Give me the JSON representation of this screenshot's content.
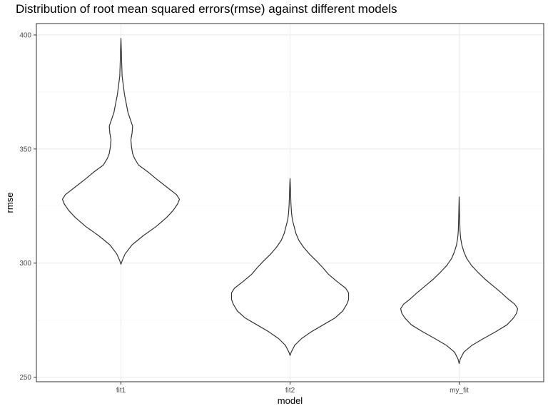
{
  "chart_data": {
    "type": "violin",
    "title": "Distribution of root mean squared errors(rmse) against different models",
    "xlabel": "model",
    "ylabel": "rmse",
    "ylim": [
      248,
      405
    ],
    "y_ticks": [
      250,
      300,
      350,
      400
    ],
    "categories": [
      "fit1",
      "fit2",
      "my_fit"
    ],
    "grid": true,
    "legend": "none",
    "colors": {
      "outline": "#333333",
      "panel_border": "#333333",
      "grid_major": "#ebebeb",
      "grid_minor": "#f5f5f5"
    },
    "violins": [
      {
        "category": "fit1",
        "min": 299.5,
        "max": 398.5,
        "density": [
          [
            299.5,
            0.0
          ],
          [
            301,
            0.02
          ],
          [
            304,
            0.07
          ],
          [
            308,
            0.19
          ],
          [
            312,
            0.38
          ],
          [
            316,
            0.6
          ],
          [
            320,
            0.78
          ],
          [
            323,
            0.89
          ],
          [
            326,
            0.97
          ],
          [
            328,
            1.0
          ],
          [
            330,
            0.95
          ],
          [
            333,
            0.8
          ],
          [
            337,
            0.6
          ],
          [
            340,
            0.46
          ],
          [
            343,
            0.3
          ],
          [
            346,
            0.23
          ],
          [
            348,
            0.2
          ],
          [
            351,
            0.18
          ],
          [
            354,
            0.17
          ],
          [
            357,
            0.19
          ],
          [
            360,
            0.2
          ],
          [
            363,
            0.16
          ],
          [
            366,
            0.12
          ],
          [
            370,
            0.09
          ],
          [
            374,
            0.06
          ],
          [
            378,
            0.04
          ],
          [
            382,
            0.02
          ],
          [
            386,
            0.015
          ],
          [
            390,
            0.01
          ],
          [
            394,
            0.006
          ],
          [
            398.5,
            0.0
          ]
        ]
      },
      {
        "category": "fit2",
        "min": 259.5,
        "max": 337,
        "density": [
          [
            259.5,
            0.0
          ],
          [
            261,
            0.02
          ],
          [
            264,
            0.08
          ],
          [
            267,
            0.2
          ],
          [
            270,
            0.37
          ],
          [
            273,
            0.57
          ],
          [
            276,
            0.77
          ],
          [
            279,
            0.9
          ],
          [
            282,
            0.97
          ],
          [
            284,
            1.0
          ],
          [
            287,
            1.0
          ],
          [
            289,
            0.95
          ],
          [
            292,
            0.8
          ],
          [
            295,
            0.66
          ],
          [
            298,
            0.56
          ],
          [
            301,
            0.45
          ],
          [
            304,
            0.33
          ],
          [
            307,
            0.23
          ],
          [
            310,
            0.15
          ],
          [
            313,
            0.1
          ],
          [
            316,
            0.07
          ],
          [
            319,
            0.04
          ],
          [
            322,
            0.025
          ],
          [
            326,
            0.015
          ],
          [
            330,
            0.01
          ],
          [
            334,
            0.005
          ],
          [
            337,
            0.0
          ]
        ]
      },
      {
        "category": "my_fit",
        "min": 256,
        "max": 329,
        "density": [
          [
            256,
            0.0
          ],
          [
            258,
            0.02
          ],
          [
            261,
            0.08
          ],
          [
            264,
            0.22
          ],
          [
            267,
            0.42
          ],
          [
            270,
            0.63
          ],
          [
            273,
            0.82
          ],
          [
            276,
            0.93
          ],
          [
            278,
            0.98
          ],
          [
            280,
            1.0
          ],
          [
            282,
            0.95
          ],
          [
            284,
            0.85
          ],
          [
            287,
            0.72
          ],
          [
            290,
            0.58
          ],
          [
            293,
            0.44
          ],
          [
            296,
            0.32
          ],
          [
            299,
            0.21
          ],
          [
            302,
            0.13
          ],
          [
            305,
            0.08
          ],
          [
            308,
            0.045
          ],
          [
            311,
            0.025
          ],
          [
            314,
            0.015
          ],
          [
            318,
            0.01
          ],
          [
            322,
            0.006
          ],
          [
            326,
            0.003
          ],
          [
            329,
            0.0
          ]
        ]
      }
    ]
  }
}
